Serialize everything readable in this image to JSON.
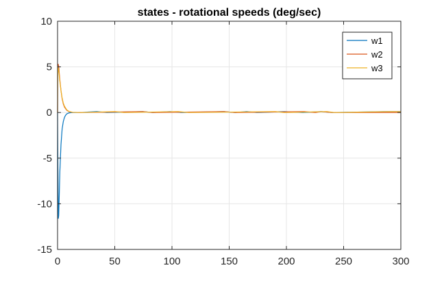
{
  "chart_data": {
    "type": "line",
    "title": "states - rotational speeds (deg/sec)",
    "xlabel": "",
    "ylabel": "",
    "xlim": [
      0,
      300
    ],
    "ylim": [
      -15,
      10
    ],
    "xticks": [
      0,
      50,
      100,
      150,
      200,
      250,
      300
    ],
    "yticks": [
      10,
      5,
      0,
      -5,
      -10,
      -15
    ],
    "xtick_labels": [
      "0",
      "50",
      "100",
      "150",
      "200",
      "250",
      "300"
    ],
    "ytick_labels": [
      "10",
      "5",
      "0",
      "-5",
      "-10",
      "-15"
    ],
    "grid": true,
    "legend_position": "top-right",
    "series": [
      {
        "name": "w1",
        "color": "#0072BD",
        "x": [
          0,
          0.3,
          0.7,
          1,
          1.5,
          2,
          3,
          4,
          5,
          6,
          7,
          8,
          10,
          12,
          15,
          20,
          34,
          34.5,
          43,
          43.5,
          74,
          74.5,
          83,
          83.5,
          98,
          98.5,
          108,
          108.5,
          145,
          145.5,
          155,
          155.5,
          165,
          165.5,
          174,
          174.5,
          198,
          198.5,
          214,
          214.5,
          230,
          230.5,
          240,
          240.5,
          285,
          285.5,
          300
        ],
        "y": [
          0,
          -6,
          -11.6,
          -11.3,
          -9,
          -6.5,
          -3.5,
          -1.8,
          -1.0,
          -0.55,
          -0.3,
          -0.15,
          -0.04,
          -0.01,
          0,
          0,
          0.1,
          0.1,
          0,
          0,
          0.1,
          0.1,
          0,
          0,
          0.1,
          0.1,
          0,
          0,
          0.1,
          0.1,
          0,
          0,
          0.1,
          0.1,
          0,
          0,
          0.1,
          0.1,
          0,
          0,
          0.1,
          0.1,
          0,
          0,
          0.1,
          0.1,
          0.1
        ]
      },
      {
        "name": "w2",
        "color": "#D95319",
        "x": [
          0,
          0.2,
          0.5,
          1,
          1.5,
          2,
          3,
          4,
          5,
          6,
          8,
          10,
          13,
          20,
          74,
          74.5,
          83,
          83.5,
          145,
          145.5,
          155,
          155.5,
          215,
          215.5,
          225,
          225.5,
          230,
          230.5,
          240,
          240.5,
          300
        ],
        "y": [
          0,
          5.3,
          5.3,
          5.1,
          4.3,
          3.6,
          2.4,
          1.5,
          0.95,
          0.6,
          0.25,
          0.1,
          0.02,
          0,
          0.1,
          0.1,
          0,
          0,
          0.1,
          0.1,
          0,
          0,
          0.1,
          0.1,
          0,
          0,
          0.1,
          0.1,
          0,
          0,
          0
        ]
      },
      {
        "name": "w3",
        "color": "#EDB120",
        "x": [
          0,
          0.2,
          0.6,
          1,
          1.5,
          2,
          3,
          4,
          5,
          6,
          8,
          10,
          13,
          20,
          50,
          50.5,
          58,
          58.5,
          105,
          105.5,
          115,
          115.5,
          190,
          190.5,
          198,
          198.5,
          235,
          235.5,
          242,
          242.5,
          290,
          290.5,
          300
        ],
        "y": [
          0,
          4.2,
          4.9,
          4.6,
          4.0,
          3.4,
          2.4,
          1.6,
          1.05,
          0.7,
          0.3,
          0.12,
          0.03,
          0,
          0.1,
          0.1,
          0,
          0,
          0.1,
          0.1,
          0,
          0,
          0.1,
          0.1,
          0,
          0,
          0.1,
          0.1,
          0,
          0,
          0.1,
          0.1,
          0.1
        ]
      }
    ]
  }
}
